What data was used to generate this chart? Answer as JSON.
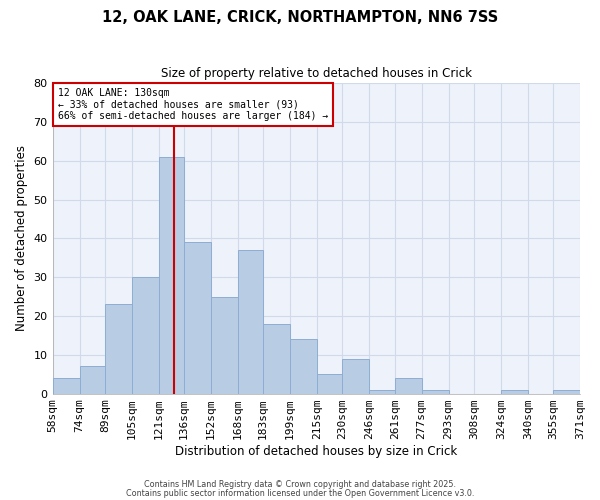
{
  "title": "12, OAK LANE, CRICK, NORTHAMPTON, NN6 7SS",
  "subtitle": "Size of property relative to detached houses in Crick",
  "xlabel": "Distribution of detached houses by size in Crick",
  "ylabel": "Number of detached properties",
  "bin_edges": [
    58,
    74,
    89,
    105,
    121,
    136,
    152,
    168,
    183,
    199,
    215,
    230,
    246,
    261,
    277,
    293,
    308,
    324,
    340,
    355,
    371
  ],
  "bin_counts": [
    4,
    7,
    23,
    30,
    61,
    39,
    25,
    37,
    18,
    14,
    5,
    9,
    1,
    4,
    1,
    0,
    0,
    1,
    0,
    1
  ],
  "bar_color": "#b8cce4",
  "bar_edge_color": "#8eadd4",
  "red_line_x": 130,
  "annotation_title": "12 OAK LANE: 130sqm",
  "annotation_line1": "← 33% of detached houses are smaller (93)",
  "annotation_line2": "66% of semi-detached houses are larger (184) →",
  "annotation_box_facecolor": "#ffffff",
  "annotation_box_edgecolor": "#cc0000",
  "red_line_color": "#cc0000",
  "tick_labels": [
    "58sqm",
    "74sqm",
    "89sqm",
    "105sqm",
    "121sqm",
    "136sqm",
    "152sqm",
    "168sqm",
    "183sqm",
    "199sqm",
    "215sqm",
    "230sqm",
    "246sqm",
    "261sqm",
    "277sqm",
    "293sqm",
    "308sqm",
    "324sqm",
    "340sqm",
    "355sqm",
    "371sqm"
  ],
  "ylim": [
    0,
    80
  ],
  "yticks": [
    0,
    10,
    20,
    30,
    40,
    50,
    60,
    70,
    80
  ],
  "grid_color": "#d0daea",
  "background_color": "#ffffff",
  "plot_bg_color": "#eef2fa",
  "footer1": "Contains HM Land Registry data © Crown copyright and database right 2025.",
  "footer2": "Contains public sector information licensed under the Open Government Licence v3.0."
}
